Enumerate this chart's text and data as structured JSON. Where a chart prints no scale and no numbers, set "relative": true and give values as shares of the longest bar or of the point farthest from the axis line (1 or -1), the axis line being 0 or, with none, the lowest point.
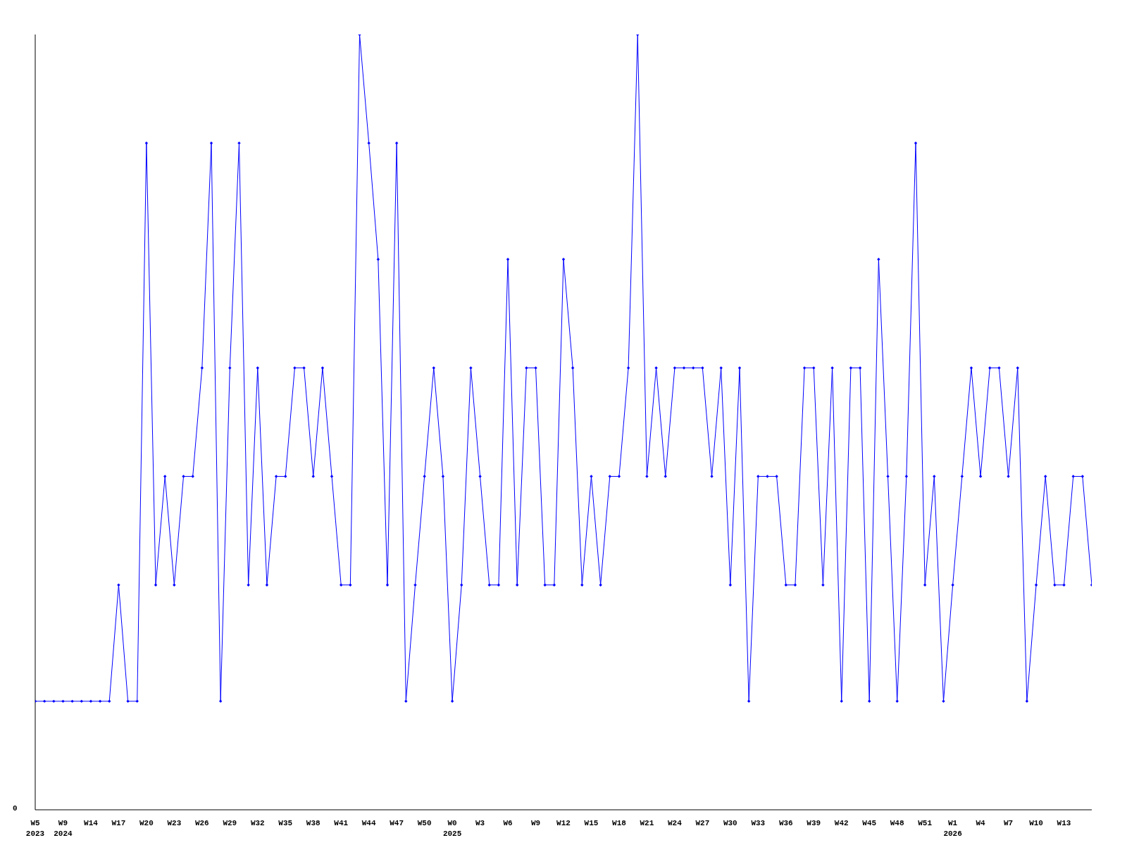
{
  "chart_data": {
    "type": "line",
    "relative": true,
    "marker": "diamond",
    "annotations": [
      "0"
    ],
    "categories": [
      "W5\n2023",
      null,
      null,
      "W9\n2024",
      null,
      null,
      "W14",
      null,
      null,
      "W17",
      null,
      null,
      "W20",
      null,
      null,
      "W23",
      null,
      null,
      "W26",
      null,
      null,
      "W29",
      null,
      null,
      "W32",
      null,
      null,
      "W35",
      null,
      null,
      "W38",
      null,
      null,
      "W41",
      null,
      null,
      "W44",
      null,
      null,
      "W47",
      null,
      null,
      "W50",
      null,
      null,
      "W0\n2025",
      null,
      null,
      "W3",
      null,
      null,
      "W6",
      null,
      null,
      "W9",
      null,
      null,
      "W12",
      null,
      null,
      "W15",
      null,
      null,
      "W18",
      null,
      null,
      "W21",
      null,
      null,
      "W24",
      null,
      null,
      "W27",
      null,
      null,
      "W30",
      null,
      null,
      "W33",
      null,
      null,
      "W36",
      null,
      null,
      "W39",
      null,
      null,
      "W42",
      null,
      null,
      "W45",
      null,
      null,
      "W48",
      null,
      null,
      "W51",
      null,
      null,
      "W1\n2026",
      null,
      null,
      "W4",
      null,
      null,
      "W7",
      null,
      null,
      "W10",
      null,
      null,
      "W13",
      null,
      null,
      null
    ],
    "series": [
      {
        "color": "#0000ff",
        "values": [
          0.14,
          0.14,
          0.14,
          0.14,
          0.14,
          0.14,
          0.14,
          0.14,
          0.14,
          0.29,
          0.14,
          0.14,
          0.86,
          0.29,
          0.43,
          0.29,
          0.43,
          0.43,
          0.57,
          0.86,
          0.14,
          0.57,
          0.86,
          0.29,
          0.57,
          0.29,
          0.43,
          0.43,
          0.57,
          0.57,
          0.43,
          0.57,
          0.43,
          0.29,
          0.29,
          1,
          0.86,
          0.71,
          0.29,
          0.86,
          0.14,
          0.29,
          0.43,
          0.57,
          0.43,
          0.14,
          0.29,
          0.57,
          0.43,
          0.29,
          0.29,
          0.71,
          0.29,
          0.57,
          0.57,
          0.29,
          0.29,
          0.71,
          0.57,
          0.29,
          0.43,
          0.29,
          0.43,
          0.43,
          0.57,
          1,
          0.43,
          0.57,
          0.43,
          0.57,
          0.57,
          0.57,
          0.57,
          0.43,
          0.57,
          0.29,
          0.57,
          0.14,
          0.43,
          0.43,
          0.43,
          0.29,
          0.29,
          0.57,
          0.57,
          0.29,
          0.57,
          0.14,
          0.57,
          0.57,
          0.14,
          0.71,
          0.43,
          0.14,
          0.43,
          0.86,
          0.29,
          0.43,
          0.14,
          0.29,
          0.43,
          0.57,
          0.43,
          0.57,
          0.57,
          0.43,
          0.57,
          0.14,
          0.29,
          0.43,
          0.29,
          0.29,
          0.43,
          0.43,
          0.29
        ]
      }
    ]
  }
}
